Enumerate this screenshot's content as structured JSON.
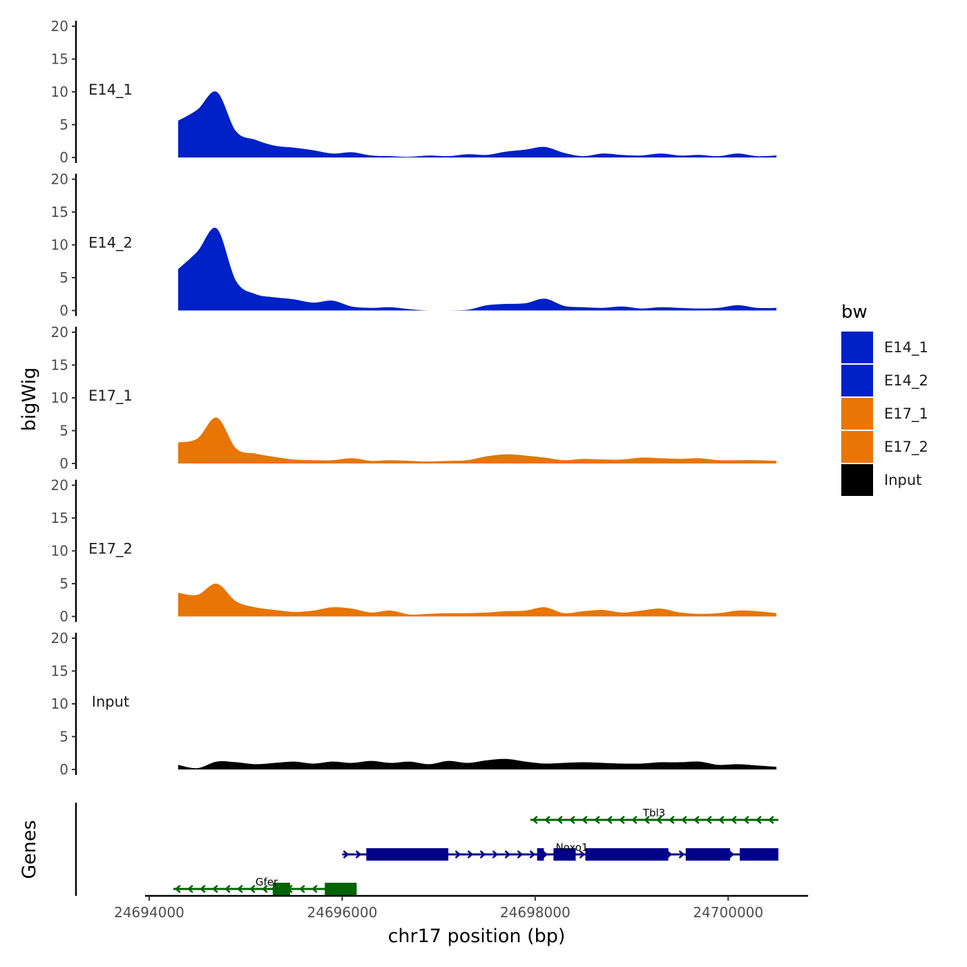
{
  "chart_data": {
    "type": "area",
    "title": "",
    "xlabel": "chr17 position (bp)",
    "ylabel": "bigWig",
    "genes_label": "Genes",
    "xlim": [
      24694000,
      24700800
    ],
    "ylim": [
      0,
      20
    ],
    "x_ticks": [
      24694000,
      24696000,
      24698000,
      24700000
    ],
    "x_tick_labels": [
      "24694000",
      "24696000",
      "24698000",
      "24700000"
    ],
    "y_ticks": [
      0,
      5,
      10,
      15,
      20
    ],
    "y_tick_labels": [
      "0",
      "5",
      "10",
      "15",
      "20"
    ],
    "legend": {
      "title": "bw",
      "position": "right",
      "entries": [
        {
          "label": "E14_1",
          "color": "#0020c8"
        },
        {
          "label": "E14_2",
          "color": "#0020c8"
        },
        {
          "label": "E17_1",
          "color": "#e87504"
        },
        {
          "label": "E17_2",
          "color": "#e87504"
        },
        {
          "label": "Input",
          "color": "#000000"
        }
      ]
    },
    "x_positions": [
      24694300,
      24694500,
      24694700,
      24694900,
      24695100,
      24695300,
      24695500,
      24695700,
      24695900,
      24696100,
      24696300,
      24696500,
      24696700,
      24696900,
      24697100,
      24697300,
      24697500,
      24697700,
      24697900,
      24698100,
      24698300,
      24698500,
      24698700,
      24698900,
      24699100,
      24699300,
      24699500,
      24699700,
      24699900,
      24700100,
      24700300,
      24700500
    ],
    "series": [
      {
        "name": "E14_1",
        "color": "#0020c8",
        "values": [
          5.6,
          7.3,
          10.0,
          4.0,
          2.7,
          1.8,
          1.5,
          1.1,
          0.6,
          0.8,
          0.3,
          0.2,
          0.1,
          0.3,
          0.2,
          0.5,
          0.4,
          0.9,
          1.2,
          1.6,
          0.7,
          0.2,
          0.6,
          0.4,
          0.3,
          0.6,
          0.3,
          0.4,
          0.2,
          0.6,
          0.2,
          0.3
        ]
      },
      {
        "name": "E14_2",
        "color": "#0020c8",
        "values": [
          6.3,
          9.0,
          12.5,
          4.5,
          2.5,
          2.0,
          1.7,
          1.2,
          1.5,
          0.6,
          0.4,
          0.5,
          0.2,
          0.0,
          0.0,
          0.1,
          0.8,
          1.0,
          1.1,
          1.8,
          0.7,
          0.5,
          0.4,
          0.6,
          0.3,
          0.5,
          0.4,
          0.3,
          0.4,
          0.8,
          0.4,
          0.4
        ]
      },
      {
        "name": "E17_1",
        "color": "#e87504",
        "values": [
          3.2,
          3.8,
          7.0,
          2.3,
          1.5,
          1.0,
          0.6,
          0.5,
          0.5,
          0.8,
          0.4,
          0.5,
          0.4,
          0.3,
          0.4,
          0.5,
          1.1,
          1.4,
          1.2,
          0.9,
          0.5,
          0.7,
          0.6,
          0.6,
          0.9,
          0.8,
          0.7,
          0.8,
          0.5,
          0.5,
          0.5,
          0.4
        ]
      },
      {
        "name": "E17_2",
        "color": "#e87504",
        "values": [
          3.6,
          3.3,
          5.0,
          2.3,
          1.4,
          1.0,
          0.7,
          0.9,
          1.4,
          1.2,
          0.6,
          0.9,
          0.3,
          0.4,
          0.5,
          0.5,
          0.6,
          0.8,
          0.9,
          1.4,
          0.5,
          0.8,
          1.0,
          0.6,
          0.9,
          1.2,
          0.6,
          0.4,
          0.5,
          0.9,
          0.8,
          0.5
        ]
      },
      {
        "name": "Input",
        "color": "#000000",
        "values": [
          0.7,
          0.2,
          1.2,
          1.1,
          0.8,
          1.0,
          1.2,
          0.9,
          1.2,
          1.0,
          1.3,
          1.0,
          1.2,
          0.8,
          1.3,
          1.0,
          1.4,
          1.6,
          1.2,
          0.9,
          1.0,
          1.1,
          1.0,
          0.9,
          0.9,
          1.1,
          1.1,
          1.2,
          0.7,
          0.8,
          0.6,
          0.4
        ]
      }
    ],
    "genes": [
      {
        "name": "Tbl3",
        "strand": "-",
        "color": "#006400",
        "start": 24697950,
        "end": 24700520,
        "row": 3,
        "exons": []
      },
      {
        "name": "Noxo1",
        "strand": "+",
        "color": "#00008b",
        "start": 24696000,
        "end": 24700520,
        "row": 2,
        "exons": [
          [
            24696250,
            24697100
          ],
          [
            24698020,
            24698090
          ],
          [
            24698190,
            24698420
          ],
          [
            24698520,
            24699380
          ],
          [
            24699560,
            24700020
          ],
          [
            24700120,
            24700520
          ]
        ]
      },
      {
        "name": "Gfer",
        "strand": "-",
        "color": "#006400",
        "start": 24694250,
        "end": 24696150,
        "row": 1,
        "exons": [
          [
            24695280,
            24695460
          ],
          [
            24695820,
            24696150
          ]
        ]
      }
    ]
  }
}
